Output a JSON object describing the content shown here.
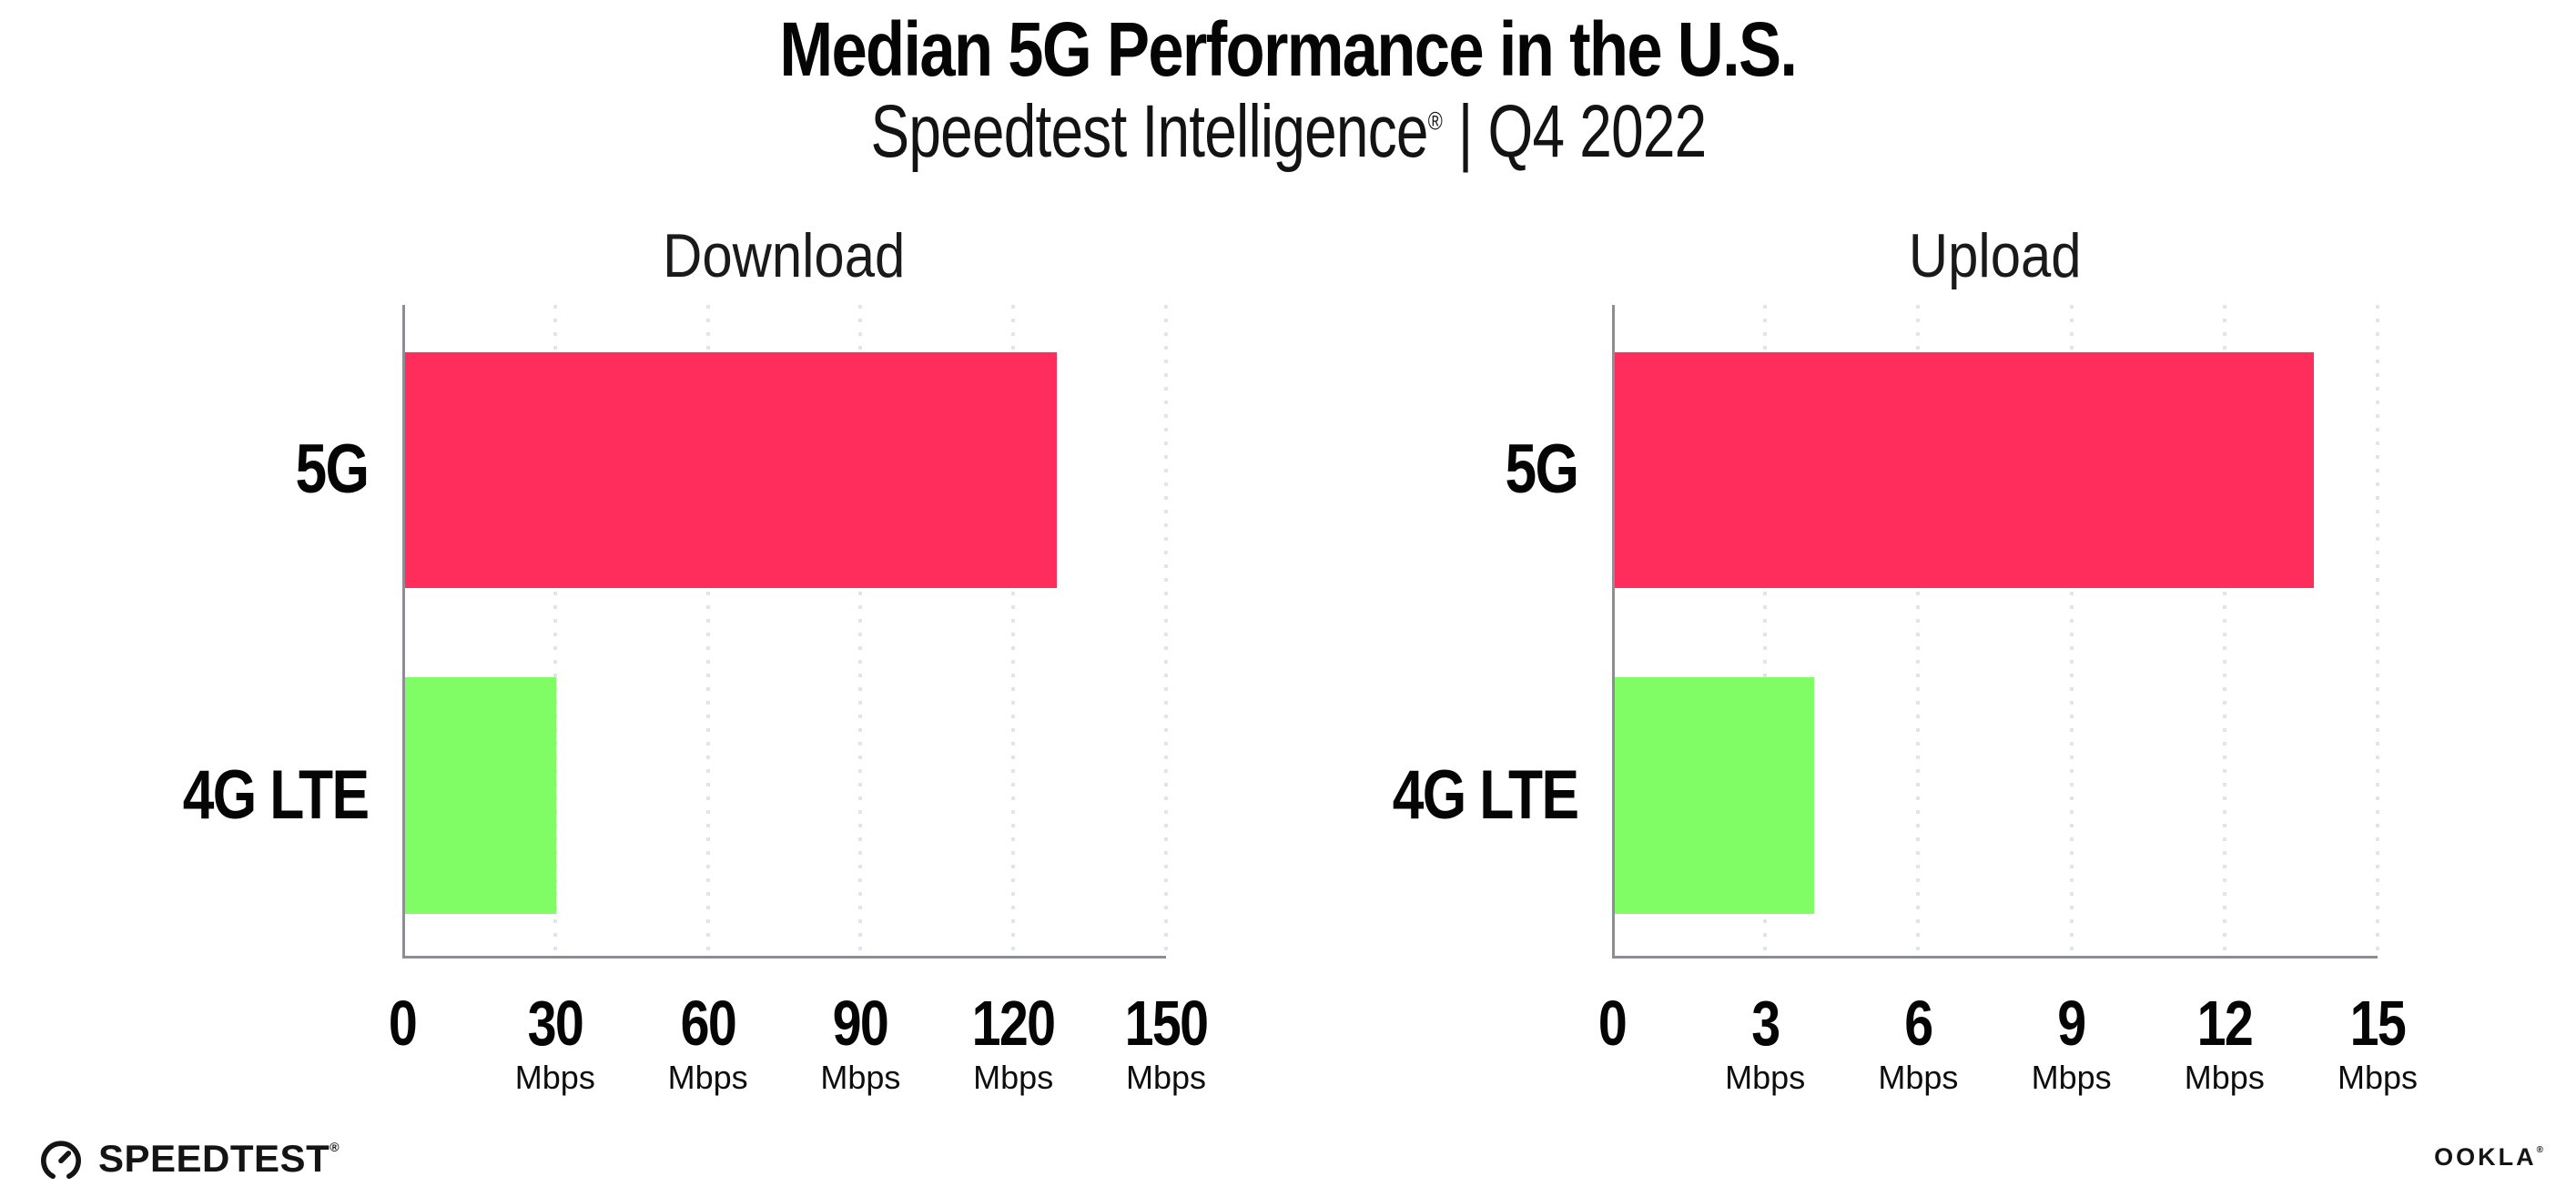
{
  "header": {
    "title": "Median 5G Performance in the U.S.",
    "subtitle_brand": "Speedtest Intelligence",
    "subtitle_mark": "®",
    "subtitle_rest": " | Q4 2022"
  },
  "footer": {
    "speedtest_label": "SPEEDTEST",
    "speedtest_mark": "®",
    "speedtest_icon": "gauge-icon",
    "ookla_label": "OOKLA",
    "ookla_mark": "®"
  },
  "colors": {
    "bar_5g": "#FF2D5C",
    "bar_4g_lte": "#80FC64",
    "axis": "#8D8D95",
    "gridline": "#E3E3EC",
    "text": "#0D0D0D"
  },
  "chart_data": [
    {
      "type": "bar",
      "orientation": "horizontal",
      "title": "Download",
      "categories": [
        "5G",
        "4G LTE"
      ],
      "values": [
        128,
        29.7
      ],
      "unit": "Mbps",
      "xlim": [
        0,
        150
      ],
      "xticks": [
        0,
        30,
        60,
        90,
        120,
        150
      ],
      "tick_unit_label": "Mbps",
      "bar_colors": [
        "#FF2D5C",
        "#80FC64"
      ],
      "grid": "vertical-dotted",
      "legend": "none"
    },
    {
      "type": "bar",
      "orientation": "horizontal",
      "title": "Upload",
      "categories": [
        "5G",
        "4G LTE"
      ],
      "values": [
        13.7,
        3.9
      ],
      "unit": "Mbps",
      "xlim": [
        0,
        15
      ],
      "xticks": [
        0,
        3,
        6,
        9,
        12,
        15
      ],
      "tick_unit_label": "Mbps",
      "bar_colors": [
        "#FF2D5C",
        "#80FC64"
      ],
      "grid": "vertical-dotted",
      "legend": "none"
    }
  ]
}
